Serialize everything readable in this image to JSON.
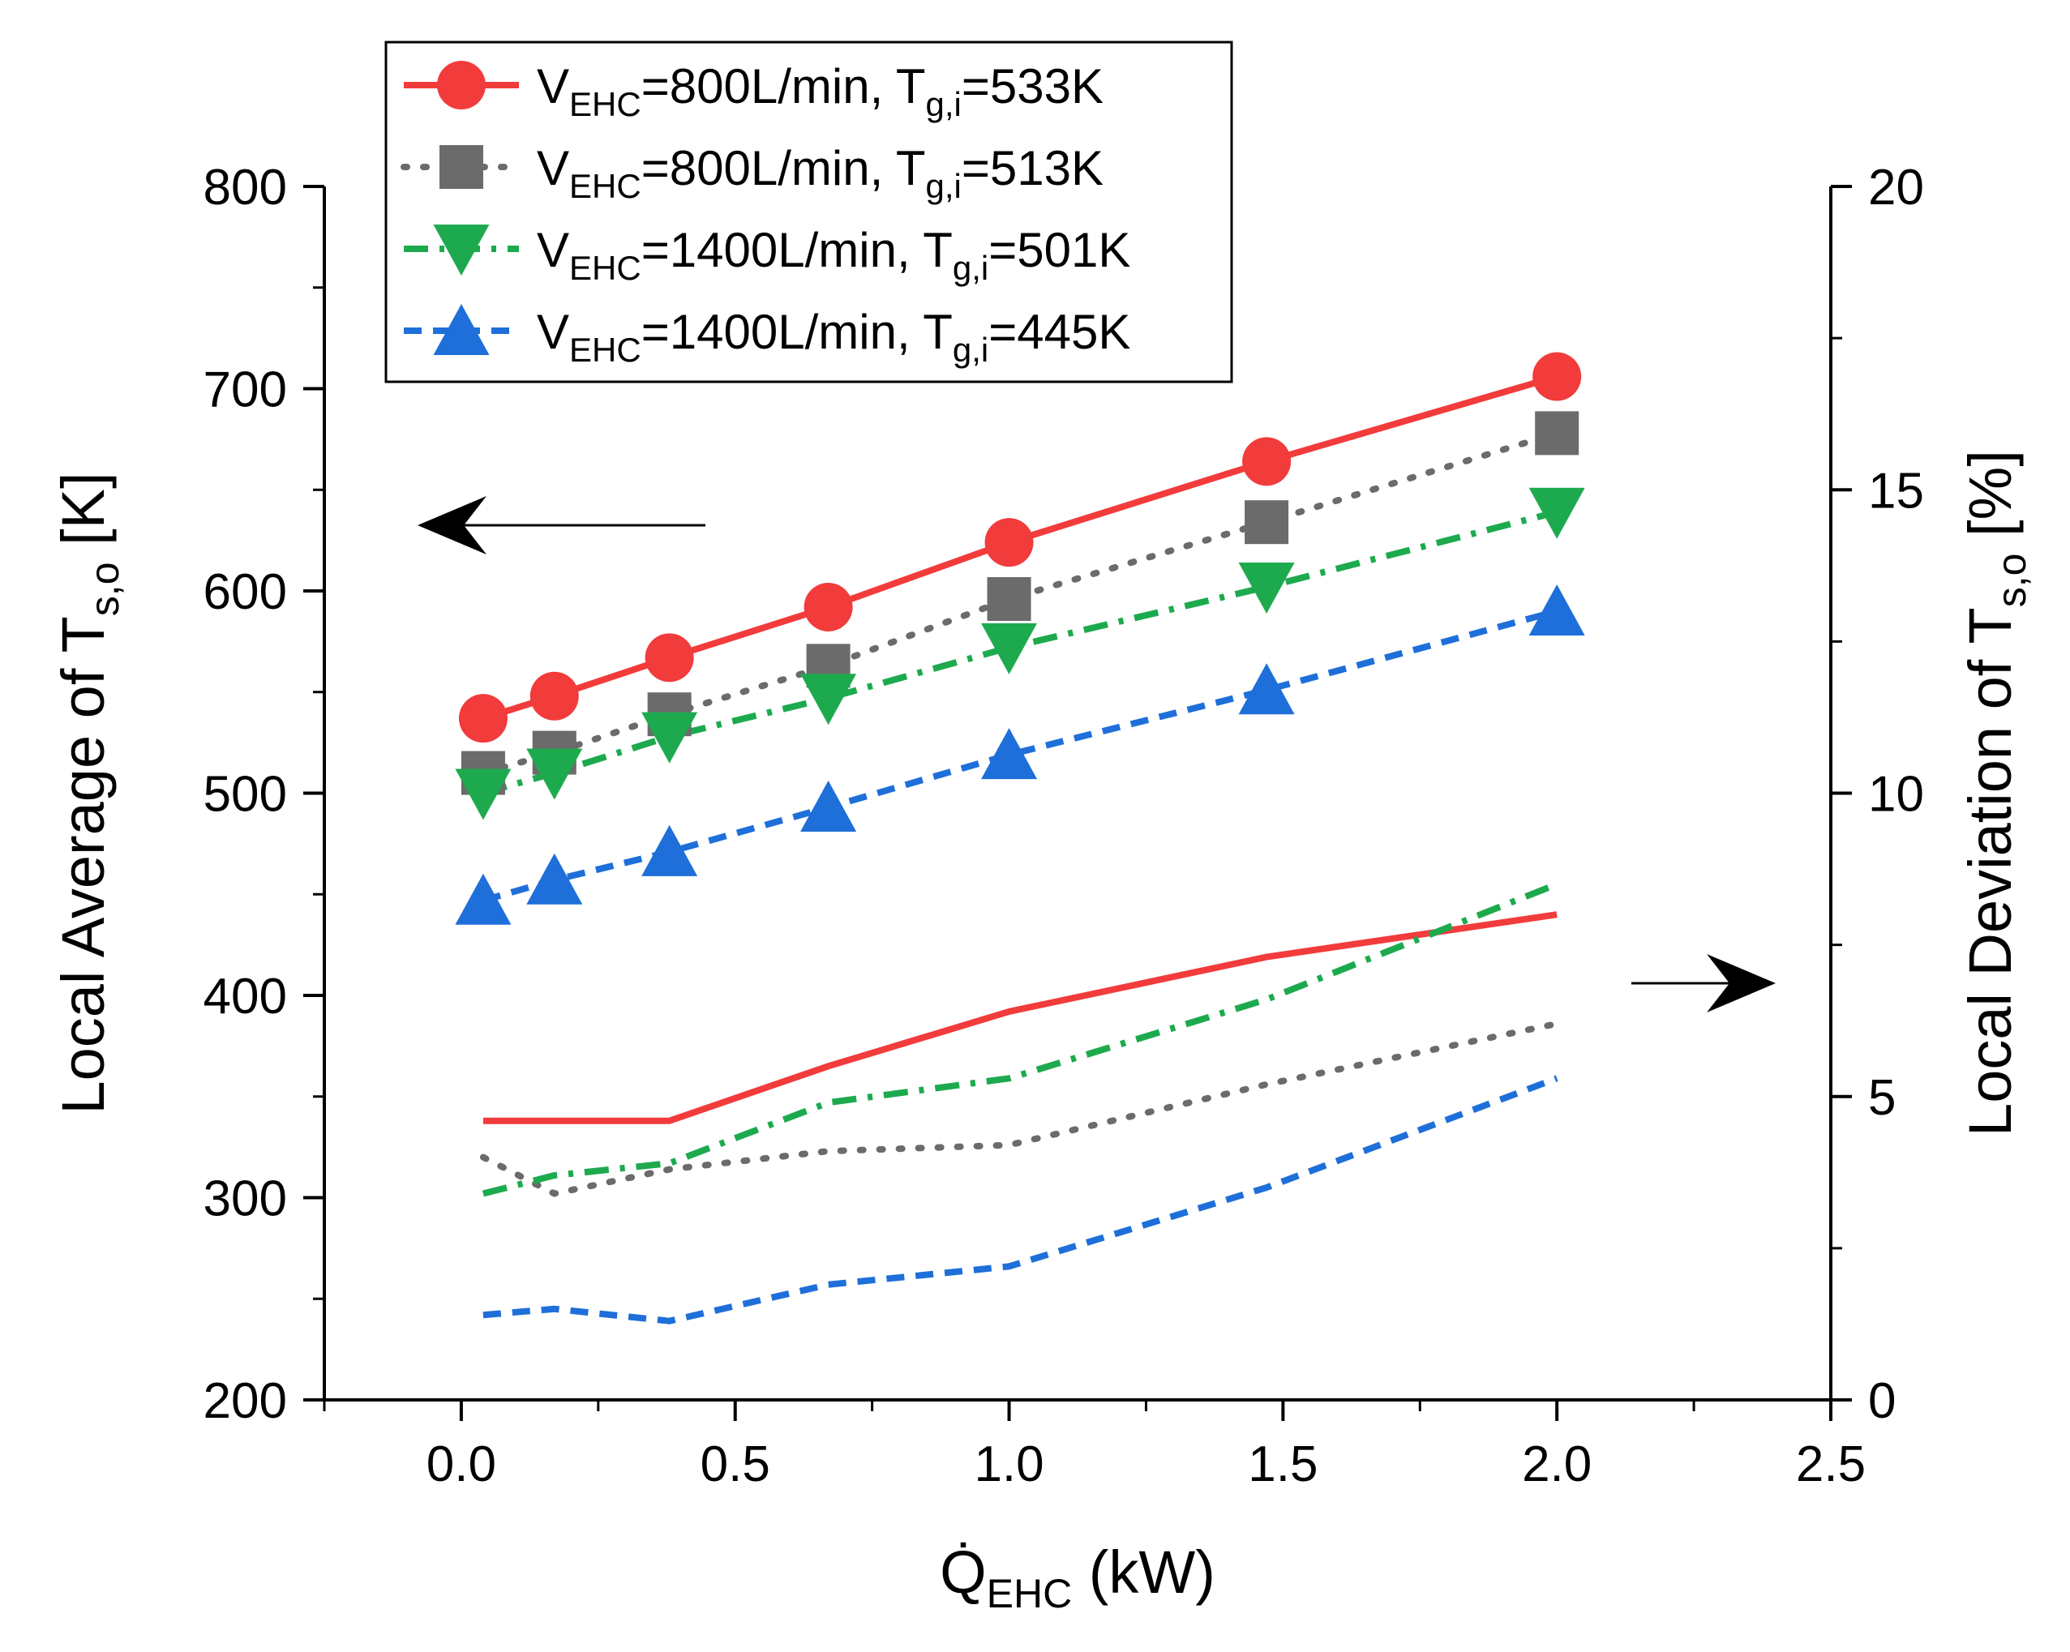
{
  "chart_data": {
    "type": "line",
    "xlabel": {
      "main": "Q̇",
      "sub": "EHC",
      "tail": " (kW)"
    },
    "ylabel_left": {
      "main": "Local Average of T",
      "sub": "s,o",
      "tail": " [K]"
    },
    "ylabel_right": {
      "main": "Local Deviation of T",
      "sub": "s,o",
      "tail": " [%]"
    },
    "xlim": [
      -0.25,
      2.5
    ],
    "ylim_left": [
      200,
      800
    ],
    "ylim_right": [
      0,
      20
    ],
    "x_ticks": [
      0.0,
      0.5,
      1.0,
      1.5,
      2.0,
      2.5
    ],
    "x_tick_labels": [
      "0.0",
      "0.5",
      "1.0",
      "1.5",
      "2.0",
      "2.5"
    ],
    "y_left_ticks": [
      200,
      300,
      400,
      500,
      600,
      700,
      800
    ],
    "y_left_tick_labels": [
      "200",
      "300",
      "400",
      "500",
      "600",
      "700",
      "800"
    ],
    "y_right_ticks": [
      0,
      5,
      10,
      15,
      20
    ],
    "y_right_tick_labels": [
      "0",
      "5",
      "10",
      "15",
      "20"
    ],
    "x": [
      0.04,
      0.17,
      0.38,
      0.67,
      1.0,
      1.47,
      2.0
    ],
    "series": [
      {
        "name": "V_EHC=800L/min, T_g,i=533K",
        "legend_parts": [
          "V",
          "EHC",
          "=800L/min, T",
          "g,i",
          "=533K"
        ],
        "color": "#f23b3b",
        "marker": "circle",
        "dash": "solid",
        "average": [
          537,
          548,
          567,
          592,
          624,
          664,
          706
        ],
        "deviation": [
          4.6,
          4.6,
          4.6,
          5.5,
          6.4,
          7.3,
          8.0
        ]
      },
      {
        "name": "V_EHC=800L/min, T_g,i=513K",
        "legend_parts": [
          "V",
          "EHC",
          "=800L/min, T",
          "g,i",
          "=513K"
        ],
        "color": "#6b6b6b",
        "marker": "square",
        "dash": "dot",
        "average": [
          510,
          520,
          539,
          563,
          596,
          634,
          678
        ],
        "deviation": [
          4.0,
          3.4,
          3.8,
          4.1,
          4.2,
          5.2,
          6.2
        ]
      },
      {
        "name": "V_EHC=1400L/min, T_g,i=501K",
        "legend_parts": [
          "V",
          "EHC",
          "=1400L/min, T",
          "g,i",
          "=501K"
        ],
        "color": "#1daa4e",
        "marker": "triangle-down",
        "dash": "dashdot",
        "average": [
          500,
          510,
          528,
          547,
          572,
          602,
          639
        ],
        "deviation": [
          3.4,
          3.7,
          3.9,
          4.9,
          5.3,
          6.6,
          8.5
        ]
      },
      {
        "name": "V_EHC=1400L/min, T_g,i=445K",
        "legend_parts": [
          "V",
          "EHC",
          "=1400L/min, T",
          "g,i",
          "=445K"
        ],
        "color": "#1e6fd9",
        "marker": "triangle-up",
        "dash": "dash",
        "average": [
          447,
          457,
          471,
          493,
          519,
          551,
          590
        ],
        "deviation": [
          1.4,
          1.5,
          1.3,
          1.9,
          2.2,
          3.5,
          5.3
        ]
      }
    ],
    "annotations": [
      {
        "type": "arrow",
        "direction": "left",
        "axis": "left"
      },
      {
        "type": "arrow",
        "direction": "right",
        "axis": "right"
      }
    ]
  }
}
